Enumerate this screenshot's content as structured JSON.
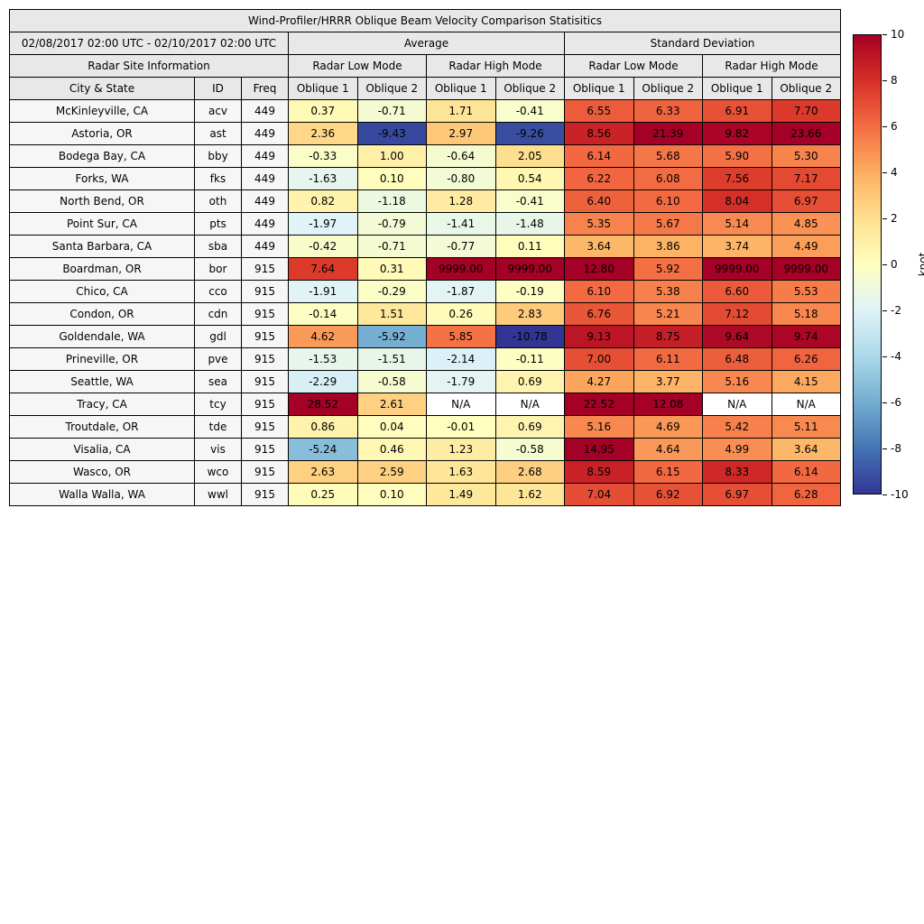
{
  "chart_data": {
    "type": "table",
    "title": "Wind-Profiler/HRRR Oblique Beam Velocity Comparison Statisitics",
    "date_range": "02/08/2017 02:00 UTC - 02/10/2017 02:00 UTC",
    "group_headers": [
      "Average",
      "Standard Deviation"
    ],
    "site_info_header": "Radar Site Information",
    "mode_headers": [
      "Radar Low Mode",
      "Radar High Mode",
      "Radar Low Mode",
      "Radar High Mode"
    ],
    "column_headers": [
      "City & State",
      "ID",
      "Freq",
      "Oblique 1",
      "Oblique 2",
      "Oblique 1",
      "Oblique 2",
      "Oblique 1",
      "Oblique 2",
      "Oblique 1",
      "Oblique 2"
    ],
    "rows": [
      {
        "city": "McKinleyville, CA",
        "id": "acv",
        "freq": "449",
        "values": [
          "0.37",
          "-0.71",
          "1.71",
          "-0.41",
          "6.55",
          "6.33",
          "6.91",
          "7.70"
        ]
      },
      {
        "city": "Astoria, OR",
        "id": "ast",
        "freq": "449",
        "values": [
          "2.36",
          "-9.43",
          "2.97",
          "-9.26",
          "8.56",
          "21.39",
          "9.82",
          "23.66"
        ]
      },
      {
        "city": "Bodega Bay, CA",
        "id": "bby",
        "freq": "449",
        "values": [
          "-0.33",
          "1.00",
          "-0.64",
          "2.05",
          "6.14",
          "5.68",
          "5.90",
          "5.30"
        ]
      },
      {
        "city": "Forks, WA",
        "id": "fks",
        "freq": "449",
        "values": [
          "-1.63",
          "0.10",
          "-0.80",
          "0.54",
          "6.22",
          "6.08",
          "7.56",
          "7.17"
        ]
      },
      {
        "city": "North Bend, OR",
        "id": "oth",
        "freq": "449",
        "values": [
          "0.82",
          "-1.18",
          "1.28",
          "-0.41",
          "6.40",
          "6.10",
          "8.04",
          "6.97"
        ]
      },
      {
        "city": "Point Sur, CA",
        "id": "pts",
        "freq": "449",
        "values": [
          "-1.97",
          "-0.79",
          "-1.41",
          "-1.48",
          "5.35",
          "5.67",
          "5.14",
          "4.85"
        ]
      },
      {
        "city": "Santa Barbara, CA",
        "id": "sba",
        "freq": "449",
        "values": [
          "-0.42",
          "-0.71",
          "-0.77",
          "0.11",
          "3.64",
          "3.86",
          "3.74",
          "4.49"
        ]
      },
      {
        "city": "Boardman, OR",
        "id": "bor",
        "freq": "915",
        "values": [
          "7.64",
          "0.31",
          "9999.00",
          "9999.00",
          "12.80",
          "5.92",
          "9999.00",
          "9999.00"
        ]
      },
      {
        "city": "Chico, CA",
        "id": "cco",
        "freq": "915",
        "values": [
          "-1.91",
          "-0.29",
          "-1.87",
          "-0.19",
          "6.10",
          "5.38",
          "6.60",
          "5.53"
        ]
      },
      {
        "city": "Condon, OR",
        "id": "cdn",
        "freq": "915",
        "values": [
          "-0.14",
          "1.51",
          "0.26",
          "2.83",
          "6.76",
          "5.21",
          "7.12",
          "5.18"
        ]
      },
      {
        "city": "Goldendale, WA",
        "id": "gdl",
        "freq": "915",
        "values": [
          "4.62",
          "-5.92",
          "5.85",
          "-10.78",
          "9.13",
          "8.75",
          "9.64",
          "9.74"
        ]
      },
      {
        "city": "Prineville, OR",
        "id": "pve",
        "freq": "915",
        "values": [
          "-1.53",
          "-1.51",
          "-2.14",
          "-0.11",
          "7.00",
          "6.11",
          "6.48",
          "6.26"
        ]
      },
      {
        "city": "Seattle, WA",
        "id": "sea",
        "freq": "915",
        "values": [
          "-2.29",
          "-0.58",
          "-1.79",
          "0.69",
          "4.27",
          "3.77",
          "5.16",
          "4.15"
        ]
      },
      {
        "city": "Tracy, CA",
        "id": "tcy",
        "freq": "915",
        "values": [
          "28.52",
          "2.61",
          "N/A",
          "N/A",
          "22.52",
          "12.08",
          "N/A",
          "N/A"
        ]
      },
      {
        "city": "Troutdale, OR",
        "id": "tde",
        "freq": "915",
        "values": [
          "0.86",
          "0.04",
          "-0.01",
          "0.69",
          "5.16",
          "4.69",
          "5.42",
          "5.11"
        ]
      },
      {
        "city": "Visalia, CA",
        "id": "vis",
        "freq": "915",
        "values": [
          "-5.24",
          "0.46",
          "1.23",
          "-0.58",
          "14.95",
          "4.64",
          "4.99",
          "3.64"
        ]
      },
      {
        "city": "Wasco, OR",
        "id": "wco",
        "freq": "915",
        "values": [
          "2.63",
          "2.59",
          "1.63",
          "2.68",
          "8.59",
          "6.15",
          "8.33",
          "6.14"
        ]
      },
      {
        "city": "Walla Walla, WA",
        "id": "wwl",
        "freq": "915",
        "values": [
          "0.25",
          "0.10",
          "1.49",
          "1.62",
          "7.04",
          "6.92",
          "6.97",
          "6.28"
        ]
      }
    ],
    "colorbar": {
      "label": "knot",
      "min": -10,
      "max": 10,
      "ticks": [
        10,
        8,
        6,
        4,
        2,
        0,
        -2,
        -4,
        -6,
        -8,
        -10
      ],
      "colormap": [
        "#313695",
        "#4575b4",
        "#74add1",
        "#abd9e9",
        "#e0f3f8",
        "#ffffbf",
        "#fee090",
        "#fdae61",
        "#f46d43",
        "#d73027",
        "#a50026"
      ],
      "na_color": "#ffffff"
    }
  }
}
